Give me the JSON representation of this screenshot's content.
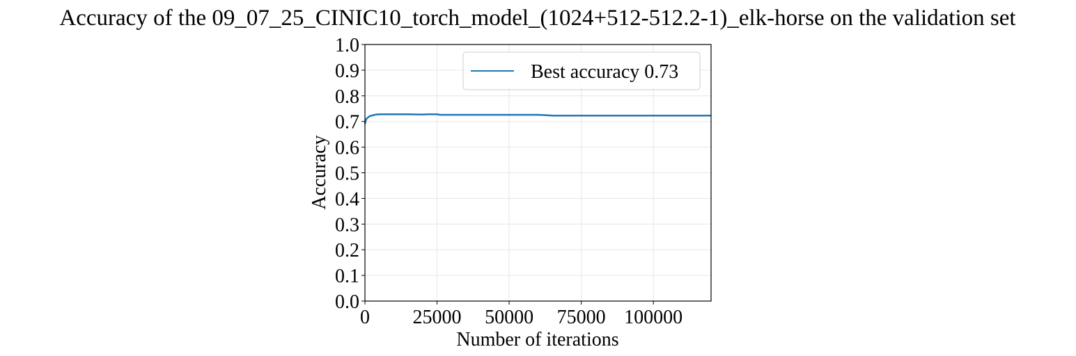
{
  "chart_data": {
    "type": "line",
    "title": "Accuracy of the 09_07_25_CINIC10_torch_model_(1024+512-512.2-1)_elk-horse on the validation set",
    "xlabel": "Number of iterations",
    "ylabel": "Accuracy",
    "xlim": [
      0,
      120000
    ],
    "ylim": [
      0.0,
      1.0
    ],
    "x_ticks": [
      0,
      25000,
      50000,
      75000,
      100000
    ],
    "x_tick_labels": [
      "0",
      "25000",
      "50000",
      "75000",
      "100000"
    ],
    "y_ticks": [
      0.0,
      0.1,
      0.2,
      0.3,
      0.4,
      0.5,
      0.6,
      0.7,
      0.8,
      0.9,
      1.0
    ],
    "y_tick_labels": [
      "0.0",
      "0.1",
      "0.2",
      "0.3",
      "0.4",
      "0.5",
      "0.6",
      "0.7",
      "0.8",
      "0.9",
      "1.0"
    ],
    "grid": true,
    "legend_position": "top-right",
    "series": [
      {
        "name": "Best accuracy 0.73",
        "color": "#1f77b4",
        "x": [
          0,
          200,
          500,
          1000,
          1500,
          2000,
          3000,
          4000,
          5000,
          7500,
          10000,
          15000,
          20000,
          22000,
          25000,
          26000,
          30000,
          40000,
          50000,
          55000,
          60000,
          62000,
          65000,
          70000,
          80000,
          90000,
          100000,
          110000,
          120000
        ],
        "y": [
          0.69,
          0.7,
          0.71,
          0.715,
          0.72,
          0.722,
          0.725,
          0.727,
          0.728,
          0.728,
          0.728,
          0.728,
          0.727,
          0.728,
          0.728,
          0.726,
          0.726,
          0.726,
          0.726,
          0.726,
          0.726,
          0.725,
          0.723,
          0.723,
          0.723,
          0.723,
          0.723,
          0.723,
          0.723
        ]
      }
    ]
  }
}
